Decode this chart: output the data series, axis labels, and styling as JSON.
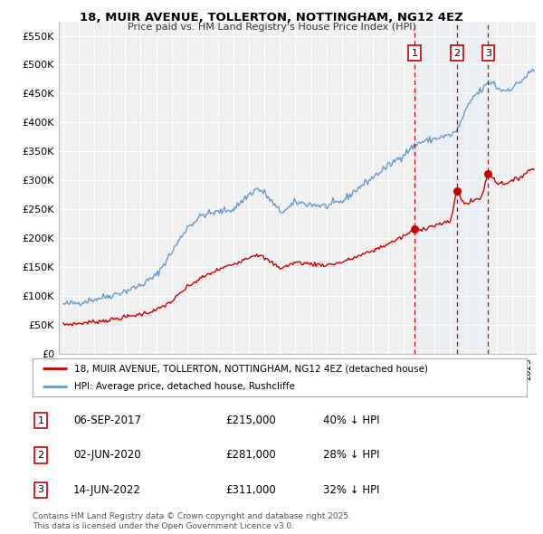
{
  "title_line1": "18, MUIR AVENUE, TOLLERTON, NOTTINGHAM, NG12 4EZ",
  "title_line2": "Price paid vs. HM Land Registry's House Price Index (HPI)",
  "hpi_color": "#6699cc",
  "price_color": "#cc0000",
  "background_color": "#f0f0f0",
  "grid_color": "#ffffff",
  "shade_color": "#ddeeff",
  "ylim": [
    0,
    575000
  ],
  "yticks": [
    0,
    50000,
    100000,
    150000,
    200000,
    250000,
    300000,
    350000,
    400000,
    450000,
    500000,
    550000
  ],
  "ytick_labels": [
    "£0",
    "£50K",
    "£100K",
    "£150K",
    "£200K",
    "£250K",
    "£300K",
    "£350K",
    "£400K",
    "£450K",
    "£500K",
    "£550K"
  ],
  "sale_dates": [
    2017.68,
    2020.42,
    2022.45
  ],
  "sale_prices": [
    215000,
    281000,
    311000
  ],
  "sale_labels": [
    "1",
    "2",
    "3"
  ],
  "sale_info": [
    {
      "num": "1",
      "date": "06-SEP-2017",
      "price": "£215,000",
      "pct": "40% ↓ HPI"
    },
    {
      "num": "2",
      "date": "02-JUN-2020",
      "price": "£281,000",
      "pct": "28% ↓ HPI"
    },
    {
      "num": "3",
      "date": "14-JUN-2022",
      "price": "£311,000",
      "pct": "32% ↓ HPI"
    }
  ],
  "legend_line1": "18, MUIR AVENUE, TOLLERTON, NOTTINGHAM, NG12 4EZ (detached house)",
  "legend_line2": "HPI: Average price, detached house, Rushcliffe",
  "footnote": "Contains HM Land Registry data © Crown copyright and database right 2025.\nThis data is licensed under the Open Government Licence v3.0.",
  "xlim_left": 1994.7,
  "xlim_right": 2025.5
}
